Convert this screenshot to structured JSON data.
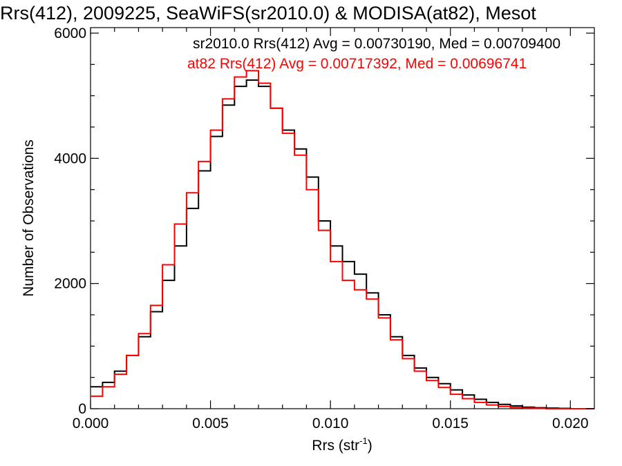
{
  "chart_data": {
    "type": "line",
    "title": "Rrs(412), 2009225, SeaWiFS(sr2010.0) & MODISA(at82), Mesot",
    "xlabel_main": "Rrs (str",
    "xlabel_sup": "-1",
    "xlabel_close": ")",
    "ylabel": "Number of Observations",
    "xlim": [
      0.0,
      0.021
    ],
    "ylim": [
      0,
      6000
    ],
    "x_ticks": [
      {
        "value": 0.0,
        "label": "0.000"
      },
      {
        "value": 0.005,
        "label": "0.005"
      },
      {
        "value": 0.01,
        "label": "0.010"
      },
      {
        "value": 0.015,
        "label": "0.015"
      },
      {
        "value": 0.02,
        "label": "0.020"
      }
    ],
    "y_ticks": [
      {
        "value": 0,
        "label": "0"
      },
      {
        "value": 2000,
        "label": "2000"
      },
      {
        "value": 4000,
        "label": "4000"
      },
      {
        "value": 6000,
        "label": "6000"
      }
    ],
    "grid": false,
    "legend_position": "top-right",
    "legend": [
      {
        "text": "sr2010.0 Rrs(412) Avg = 0.00730190, Med = 0.00709400",
        "color": "#000000"
      },
      {
        "text": "at82 Rrs(412) Avg = 0.00717392, Med = 0.00696741",
        "color": "#ff0000"
      }
    ],
    "series": [
      {
        "color": "#000000",
        "x": [
          0.0,
          0.0005,
          0.001,
          0.0015,
          0.002,
          0.0025,
          0.003,
          0.0035,
          0.004,
          0.0045,
          0.005,
          0.0055,
          0.006,
          0.0065,
          0.007,
          0.0075,
          0.008,
          0.0085,
          0.009,
          0.0095,
          0.01,
          0.0105,
          0.011,
          0.0115,
          0.012,
          0.0125,
          0.013,
          0.0135,
          0.014,
          0.0145,
          0.015,
          0.0155,
          0.016,
          0.0165,
          0.017,
          0.0175,
          0.018,
          0.0185,
          0.019,
          0.0195,
          0.02,
          0.0205,
          0.021
        ],
        "y": [
          350,
          420,
          600,
          850,
          1150,
          1550,
          2050,
          2600,
          3200,
          3800,
          4350,
          4850,
          5150,
          5250,
          5150,
          4800,
          4450,
          4150,
          3700,
          3000,
          2600,
          2350,
          2150,
          1850,
          1500,
          1150,
          850,
          650,
          500,
          400,
          300,
          220,
          150,
          100,
          70,
          45,
          25,
          15,
          10,
          5,
          0,
          0,
          0
        ]
      },
      {
        "color": "#ff0000",
        "x": [
          0.0,
          0.0005,
          0.001,
          0.0015,
          0.002,
          0.0025,
          0.003,
          0.0035,
          0.004,
          0.0045,
          0.005,
          0.0055,
          0.006,
          0.0065,
          0.007,
          0.0075,
          0.008,
          0.0085,
          0.009,
          0.0095,
          0.01,
          0.0105,
          0.011,
          0.0115,
          0.012,
          0.0125,
          0.013,
          0.0135,
          0.014,
          0.0145,
          0.015,
          0.0155,
          0.016,
          0.0165,
          0.017,
          0.0175,
          0.018,
          0.0185,
          0.019,
          0.0195,
          0.02,
          0.0205,
          0.021
        ],
        "y": [
          200,
          350,
          550,
          850,
          1200,
          1650,
          2300,
          2950,
          3450,
          3950,
          4450,
          4950,
          5300,
          5400,
          5200,
          4800,
          4400,
          4050,
          3500,
          2850,
          2350,
          2050,
          1900,
          1750,
          1450,
          1100,
          800,
          600,
          450,
          340,
          230,
          160,
          100,
          60,
          35,
          20,
          10,
          5,
          0,
          0,
          0,
          0,
          0
        ]
      }
    ]
  }
}
